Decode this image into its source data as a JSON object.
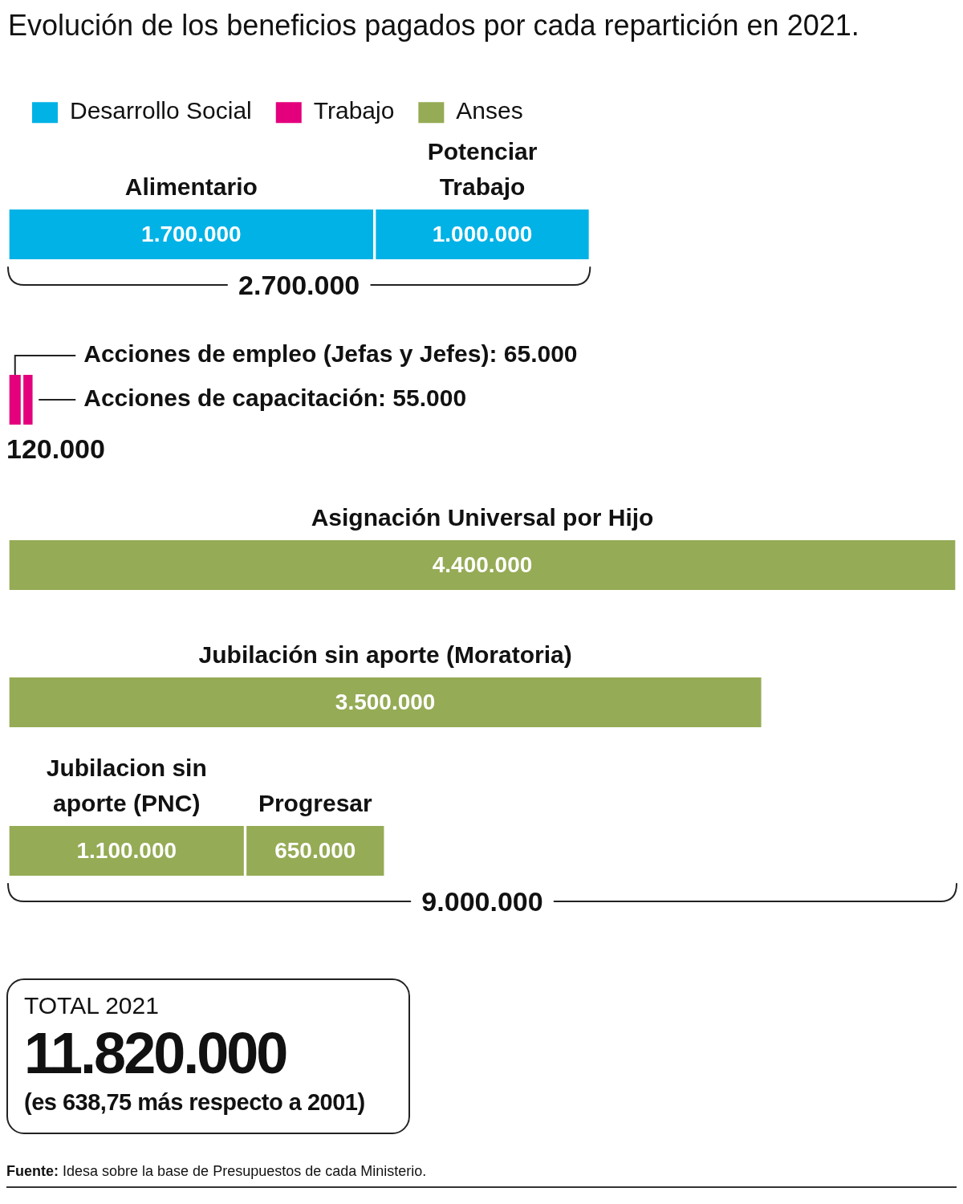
{
  "chart_data": [
    {
      "type": "bar",
      "orientation": "horizontal",
      "stacked": true,
      "title": "Evolución de los beneficios pagados por cada repartición en 2021.",
      "categories": [
        null,
        null,
        null,
        null,
        null
      ],
      "series": [
        {
          "name": "Desarrollo Social",
          "color": "#00b2e6",
          "values": [
            null,
            null,
            null,
            null,
            null
          ]
        },
        {
          "name": "Trabajo",
          "color": "#e4007c",
          "values": [
            null,
            null,
            null,
            null,
            null
          ]
        },
        {
          "name": "Anses",
          "color": "#95ab55",
          "values": [
            null,
            null,
            null,
            null,
            null
          ]
        },
        {
          "name": "Alimentario",
          "color": "#00b2e6",
          "values": [
            1700000,
            null,
            null,
            null,
            null
          ],
          "value_labels": [
            "1.700.000",
            null,
            null,
            null,
            null
          ]
        },
        {
          "name": "Potenciar Trabajo",
          "color": "#00b2e6",
          "values": [
            1000000,
            null,
            null,
            null,
            null
          ],
          "value_labels": [
            "1.000.000",
            null,
            null,
            null,
            null
          ]
        },
        {
          "name": "Acciones de empleo (Jefas y Jefes): 65.000",
          "color": "#e4007c",
          "values": [
            null,
            65000,
            null,
            null,
            null
          ]
        },
        {
          "name": "Acciones de capacitación: 55.000",
          "color": "#e4007c",
          "values": [
            null,
            55000,
            null,
            null,
            null
          ]
        },
        {
          "name": "Asignación Universal por Hijo",
          "color": "#95ab55",
          "values": [
            null,
            null,
            4400000,
            null,
            null
          ],
          "value_labels": [
            null,
            null,
            "4.400.000",
            null,
            null
          ]
        },
        {
          "name": "Jubilación sin aporte (Moratoria)",
          "color": "#95ab55",
          "values": [
            null,
            null,
            null,
            3500000,
            null
          ],
          "value_labels": [
            null,
            null,
            null,
            "3.500.000",
            null
          ]
        },
        {
          "name": "Jubilacion sin aporte (PNC)",
          "color": "#95ab55",
          "values": [
            null,
            null,
            null,
            null,
            1100000
          ],
          "value_labels": [
            null,
            null,
            null,
            null,
            "1.100.000"
          ]
        },
        {
          "name": "Progresar",
          "color": "#95ab55",
          "values": [
            null,
            null,
            null,
            null,
            650000
          ],
          "value_labels": [
            null,
            null,
            null,
            null,
            "650.000"
          ]
        }
      ],
      "totals": [
        "2.700.000",
        "120.000",
        null,
        null,
        null
      ],
      "annotations": [
        "9.000.000"
      ],
      "xlim": [
        0,
        4400000
      ],
      "tick_labels": false,
      "legend": "top left"
    },
    {
      "type": "other",
      "title": "TOTAL 2021",
      "subtitle": "(es 638,75 más respecto a 2001)",
      "annotations": [
        "11.820.000",
        "Fuente: Idesa sobre la base de Presupuestos de cada Ministerio."
      ]
    }
  ]
}
